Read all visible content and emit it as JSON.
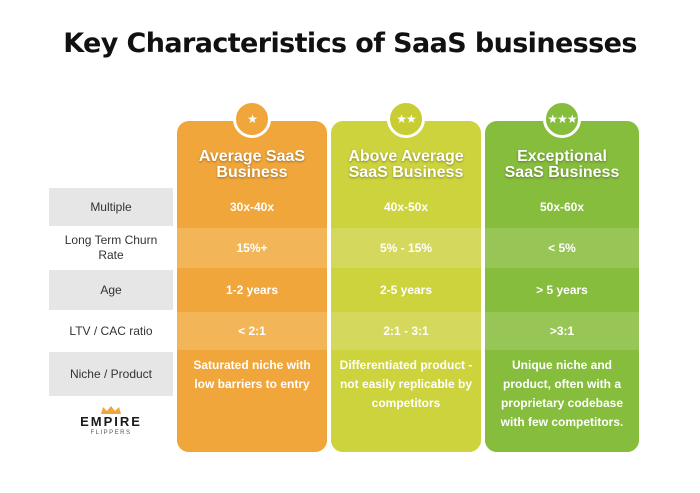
{
  "title": "Key Characteristics of SaaS businesses",
  "row_labels": [
    "Multiple",
    "Long Term Churn Rate",
    "Age",
    "LTV / CAC ratio",
    "Niche / Product"
  ],
  "columns": [
    {
      "header_line1": "Average SaaS",
      "header_line2": "Business",
      "stars": "★",
      "cells": [
        "30x-40x",
        "15%+",
        "1-2 years",
        "< 2:1",
        "Saturated niche with low barriers to entry"
      ],
      "colors": {
        "main": "#f0a63a",
        "alt": "#f2b659",
        "badge": "#f0a63a"
      }
    },
    {
      "header_line1": "Above Average",
      "header_line2": "SaaS Business",
      "stars": "★★",
      "cells": [
        "40x-50x",
        "5% - 15%",
        "2-5 years",
        "2:1 - 3:1",
        "Differentiated product - not easily replicable by competitors"
      ],
      "colors": {
        "main": "#cdd33c",
        "alt": "#d4d85d",
        "badge": "#c7cd32"
      }
    },
    {
      "header_line1": "Exceptional",
      "header_line2": "SaaS Business",
      "stars": "★★★",
      "cells": [
        "50x-60x",
        "< 5%",
        "> 5 years",
        ">3:1",
        "Unique niche and product, often with a proprietary codebase with few competitors."
      ],
      "colors": {
        "main": "#86bd3c",
        "alt": "#97c657",
        "badge": "#86bd3c"
      }
    }
  ],
  "logo": {
    "word": "EMPIRE",
    "sub": "FLIPPERS"
  }
}
